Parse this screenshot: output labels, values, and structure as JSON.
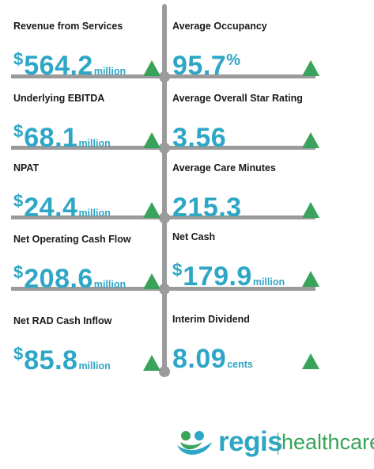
{
  "colors": {
    "value": "#2ea6c5",
    "up": "#3aa35b",
    "divider": "#9b9b9b"
  },
  "metrics": [
    {
      "label": "Revenue from Services",
      "currency": "$",
      "value": "564.2",
      "unit": "million",
      "trend_icon": "up-triangle-icon"
    },
    {
      "label": "Average Occupancy",
      "currency": "",
      "value": "95.7",
      "unit": "%",
      "trend_icon": "up-triangle-icon"
    },
    {
      "label": "Underlying EBITDA",
      "currency": "$",
      "value": "68.1",
      "unit": "million",
      "trend_icon": "up-triangle-icon"
    },
    {
      "label": "Average Overall Star Rating",
      "currency": "",
      "value": "3.56",
      "unit": "",
      "trend_icon": "up-triangle-icon"
    },
    {
      "label": "NPAT",
      "currency": "$",
      "value": "24.4",
      "unit": "million",
      "trend_icon": "up-triangle-icon"
    },
    {
      "label": "Average Care Minutes",
      "currency": "",
      "value": "215.3",
      "unit": "",
      "trend_icon": "up-triangle-icon"
    },
    {
      "label": "Net Operating Cash Flow",
      "currency": "$",
      "value": "208.6",
      "unit": "million",
      "trend_icon": "up-triangle-icon"
    },
    {
      "label": "Net Cash",
      "currency": "$",
      "value": "179.9",
      "unit": "million",
      "trend_icon": "up-triangle-icon"
    },
    {
      "label": "Net RAD Cash Inflow",
      "currency": "$",
      "value": "85.8",
      "unit": "million",
      "trend_icon": "up-triangle-icon"
    },
    {
      "label": "Interim Dividend",
      "currency": "",
      "value": "8.09",
      "unit": "cents",
      "trend_icon": "up-triangle-icon"
    }
  ],
  "logo": {
    "word1": "regis",
    "word2": "healthcare"
  }
}
